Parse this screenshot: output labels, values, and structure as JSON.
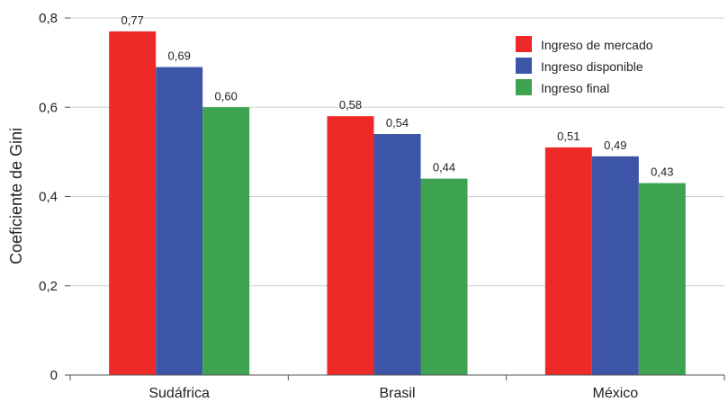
{
  "chart_data": {
    "type": "bar",
    "title": "",
    "xlabel": "",
    "ylabel": "Coeficiente de Gini",
    "ylim": [
      0,
      0.8
    ],
    "yticks": [
      {
        "value": 0,
        "label": "0"
      },
      {
        "value": 0.2,
        "label": "0,2"
      },
      {
        "value": 0.4,
        "label": "0,4"
      },
      {
        "value": 0.6,
        "label": "0,6"
      },
      {
        "value": 0.8,
        "label": "0,8"
      }
    ],
    "grid": true,
    "legend_position": "top-right",
    "categories": [
      "Sudáfrica",
      "Brasil",
      "México"
    ],
    "series": [
      {
        "name": "Ingreso de mercado",
        "color": "#ee2a29",
        "values": [
          0.77,
          0.58,
          0.51
        ],
        "labels": [
          "0,77",
          "0,58",
          "0,51"
        ]
      },
      {
        "name": "Ingreso disponible",
        "color": "#3d55a7",
        "values": [
          0.69,
          0.54,
          0.49
        ],
        "labels": [
          "0,69",
          "0,54",
          "0,49"
        ]
      },
      {
        "name": "Ingreso final",
        "color": "#3da350",
        "values": [
          0.6,
          0.44,
          0.43
        ],
        "labels": [
          "0,60",
          "0,44",
          "0,43"
        ]
      }
    ]
  }
}
